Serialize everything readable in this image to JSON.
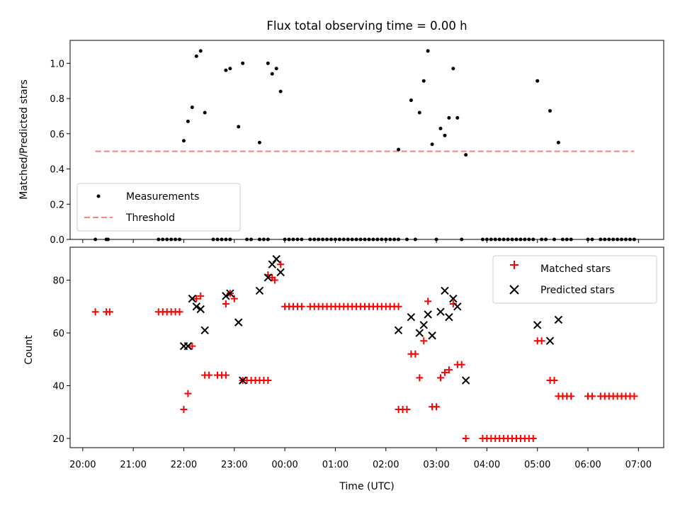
{
  "chart_data": [
    {
      "type": "scatter",
      "title": "Flux total observing time = 0.00 h",
      "xlabel": "",
      "ylabel": "Matched/Predicted stars",
      "xlim": [
        "19:45",
        "07:30"
      ],
      "ylim": [
        0,
        1.13
      ],
      "yticks": [
        "0.0",
        "0.2",
        "0.4",
        "0.6",
        "0.8",
        "1.0"
      ],
      "legend": {
        "placement": "lower-left",
        "entries": [
          "Measurements",
          "Threshold"
        ]
      },
      "threshold": {
        "name": "Threshold",
        "y": 0.5,
        "x_start": "20:15",
        "x_end": "06:55",
        "color": "#ff8080"
      },
      "series": [
        {
          "name": "Measurements",
          "color": "#000000",
          "points": [
            [
              "20:15",
              0
            ],
            [
              "20:28",
              0
            ],
            [
              "20:30",
              0
            ],
            [
              "21:30",
              0
            ],
            [
              "21:35",
              0
            ],
            [
              "21:40",
              0
            ],
            [
              "21:45",
              0
            ],
            [
              "21:50",
              0
            ],
            [
              "21:55",
              0
            ],
            [
              "22:00",
              0.56
            ],
            [
              "22:05",
              0.67
            ],
            [
              "22:10",
              0.75
            ],
            [
              "22:15",
              1.04
            ],
            [
              "22:20",
              1.07
            ],
            [
              "22:25",
              0.72
            ],
            [
              "22:35",
              0
            ],
            [
              "22:40",
              0
            ],
            [
              "22:45",
              0
            ],
            [
              "22:50",
              0
            ],
            [
              "22:55",
              0
            ],
            [
              "22:50",
              0.96
            ],
            [
              "22:55",
              0.97
            ],
            [
              "23:05",
              0.64
            ],
            [
              "23:10",
              1.0
            ],
            [
              "23:15",
              0
            ],
            [
              "23:20",
              0
            ],
            [
              "23:30",
              0
            ],
            [
              "23:35",
              0
            ],
            [
              "23:40",
              0
            ],
            [
              "23:30",
              0.55
            ],
            [
              "23:40",
              1.0
            ],
            [
              "23:45",
              0.94
            ],
            [
              "23:50",
              0.97
            ],
            [
              "23:55",
              0.84
            ],
            [
              "00:00",
              0
            ],
            [
              "00:05",
              0
            ],
            [
              "00:10",
              0
            ],
            [
              "00:15",
              0
            ],
            [
              "00:20",
              0
            ],
            [
              "00:30",
              0
            ],
            [
              "00:35",
              0
            ],
            [
              "00:40",
              0
            ],
            [
              "00:45",
              0
            ],
            [
              "00:50",
              0
            ],
            [
              "00:55",
              0
            ],
            [
              "01:00",
              0
            ],
            [
              "01:05",
              0
            ],
            [
              "01:10",
              0
            ],
            [
              "01:15",
              0
            ],
            [
              "01:20",
              0
            ],
            [
              "01:25",
              0
            ],
            [
              "01:30",
              0
            ],
            [
              "01:35",
              0
            ],
            [
              "01:40",
              0
            ],
            [
              "01:45",
              0
            ],
            [
              "01:50",
              0
            ],
            [
              "01:55",
              0
            ],
            [
              "02:00",
              0
            ],
            [
              "02:05",
              0
            ],
            [
              "02:10",
              0
            ],
            [
              "02:15",
              0
            ],
            [
              "02:15",
              0.51
            ],
            [
              "02:25",
              0
            ],
            [
              "02:30",
              0.79
            ],
            [
              "02:35",
              0
            ],
            [
              "02:40",
              0.72
            ],
            [
              "02:45",
              0.9
            ],
            [
              "02:50",
              1.07
            ],
            [
              "02:55",
              0.54
            ],
            [
              "03:00",
              0
            ],
            [
              "03:05",
              0.63
            ],
            [
              "03:10",
              0.59
            ],
            [
              "03:15",
              0.69
            ],
            [
              "03:20",
              0.97
            ],
            [
              "03:25",
              0.69
            ],
            [
              "03:30",
              0
            ],
            [
              "03:35",
              0.48
            ],
            [
              "03:55",
              0
            ],
            [
              "04:00",
              0
            ],
            [
              "04:05",
              0
            ],
            [
              "04:10",
              0
            ],
            [
              "04:15",
              0
            ],
            [
              "04:20",
              0
            ],
            [
              "04:25",
              0
            ],
            [
              "04:30",
              0
            ],
            [
              "04:35",
              0
            ],
            [
              "04:40",
              0
            ],
            [
              "04:45",
              0
            ],
            [
              "04:50",
              0
            ],
            [
              "04:55",
              0
            ],
            [
              "05:00",
              0.9
            ],
            [
              "05:05",
              0
            ],
            [
              "05:10",
              0
            ],
            [
              "05:15",
              0.73
            ],
            [
              "05:20",
              0
            ],
            [
              "05:25",
              0.55
            ],
            [
              "05:30",
              0
            ],
            [
              "05:35",
              0
            ],
            [
              "05:40",
              0
            ],
            [
              "06:00",
              0
            ],
            [
              "06:05",
              0
            ],
            [
              "06:15",
              0
            ],
            [
              "06:20",
              0
            ],
            [
              "06:25",
              0
            ],
            [
              "06:30",
              0
            ],
            [
              "06:35",
              0
            ],
            [
              "06:40",
              0
            ],
            [
              "06:45",
              0
            ],
            [
              "06:50",
              0
            ],
            [
              "06:55",
              0
            ]
          ]
        }
      ]
    },
    {
      "type": "scatter",
      "title": "",
      "xlabel": "Time (UTC)",
      "ylabel": "Count",
      "xlim": [
        "19:45",
        "07:30"
      ],
      "ylim": [
        16.5,
        92.5
      ],
      "yticks": [
        "20",
        "40",
        "60",
        "80"
      ],
      "xticks": [
        "20:00",
        "21:00",
        "22:00",
        "23:00",
        "00:00",
        "01:00",
        "02:00",
        "03:00",
        "04:00",
        "05:00",
        "06:00",
        "07:00"
      ],
      "legend": {
        "placement": "top-right",
        "entries": [
          "Matched stars",
          "Predicted stars"
        ]
      },
      "series": [
        {
          "name": "Matched stars",
          "marker": "plus",
          "color": "#ff0000",
          "points": [
            [
              "20:15",
              68
            ],
            [
              "20:28",
              68
            ],
            [
              "20:32",
              68
            ],
            [
              "21:30",
              68
            ],
            [
              "21:35",
              68
            ],
            [
              "21:40",
              68
            ],
            [
              "21:45",
              68
            ],
            [
              "21:50",
              68
            ],
            [
              "21:55",
              68
            ],
            [
              "22:00",
              31
            ],
            [
              "22:05",
              37
            ],
            [
              "22:10",
              55
            ],
            [
              "22:15",
              73
            ],
            [
              "22:20",
              74
            ],
            [
              "22:25",
              44
            ],
            [
              "22:30",
              44
            ],
            [
              "22:40",
              44
            ],
            [
              "22:45",
              44
            ],
            [
              "22:50",
              44
            ],
            [
              "22:50",
              71
            ],
            [
              "22:55",
              75
            ],
            [
              "23:00",
              73
            ],
            [
              "23:10",
              42
            ],
            [
              "23:15",
              42
            ],
            [
              "23:20",
              42
            ],
            [
              "23:25",
              42
            ],
            [
              "23:30",
              42
            ],
            [
              "23:35",
              42
            ],
            [
              "23:40",
              42
            ],
            [
              "23:40",
              82
            ],
            [
              "23:45",
              81
            ],
            [
              "23:48",
              80
            ],
            [
              "23:55",
              86
            ],
            [
              "00:00",
              70
            ],
            [
              "00:05",
              70
            ],
            [
              "00:10",
              70
            ],
            [
              "00:15",
              70
            ],
            [
              "00:20",
              70
            ],
            [
              "00:30",
              70
            ],
            [
              "00:35",
              70
            ],
            [
              "00:40",
              70
            ],
            [
              "00:45",
              70
            ],
            [
              "00:50",
              70
            ],
            [
              "00:55",
              70
            ],
            [
              "01:00",
              70
            ],
            [
              "01:05",
              70
            ],
            [
              "01:10",
              70
            ],
            [
              "01:15",
              70
            ],
            [
              "01:20",
              70
            ],
            [
              "01:25",
              70
            ],
            [
              "01:30",
              70
            ],
            [
              "01:35",
              70
            ],
            [
              "01:40",
              70
            ],
            [
              "01:45",
              70
            ],
            [
              "01:50",
              70
            ],
            [
              "01:55",
              70
            ],
            [
              "02:00",
              70
            ],
            [
              "02:05",
              70
            ],
            [
              "02:10",
              70
            ],
            [
              "02:15",
              70
            ],
            [
              "02:15",
              31
            ],
            [
              "02:20",
              31
            ],
            [
              "02:25",
              31
            ],
            [
              "02:30",
              52
            ],
            [
              "02:35",
              52
            ],
            [
              "02:40",
              43
            ],
            [
              "02:45",
              57
            ],
            [
              "02:50",
              72
            ],
            [
              "02:55",
              32
            ],
            [
              "03:00",
              32
            ],
            [
              "03:05",
              43
            ],
            [
              "03:10",
              45
            ],
            [
              "03:15",
              46
            ],
            [
              "03:20",
              71
            ],
            [
              "03:25",
              48
            ],
            [
              "03:30",
              48
            ],
            [
              "03:35",
              20
            ],
            [
              "03:55",
              20
            ],
            [
              "04:00",
              20
            ],
            [
              "04:05",
              20
            ],
            [
              "04:10",
              20
            ],
            [
              "04:15",
              20
            ],
            [
              "04:20",
              20
            ],
            [
              "04:25",
              20
            ],
            [
              "04:30",
              20
            ],
            [
              "04:35",
              20
            ],
            [
              "04:40",
              20
            ],
            [
              "04:45",
              20
            ],
            [
              "04:50",
              20
            ],
            [
              "04:55",
              20
            ],
            [
              "05:00",
              57
            ],
            [
              "05:05",
              57
            ],
            [
              "05:15",
              42
            ],
            [
              "05:20",
              42
            ],
            [
              "05:25",
              36
            ],
            [
              "05:30",
              36
            ],
            [
              "05:35",
              36
            ],
            [
              "05:40",
              36
            ],
            [
              "06:00",
              36
            ],
            [
              "06:05",
              36
            ],
            [
              "06:15",
              36
            ],
            [
              "06:20",
              36
            ],
            [
              "06:25",
              36
            ],
            [
              "06:30",
              36
            ],
            [
              "06:35",
              36
            ],
            [
              "06:40",
              36
            ],
            [
              "06:45",
              36
            ],
            [
              "06:50",
              36
            ],
            [
              "06:55",
              36
            ]
          ]
        },
        {
          "name": "Predicted stars",
          "marker": "x",
          "color": "#000000",
          "points": [
            [
              "22:00",
              55
            ],
            [
              "22:05",
              55
            ],
            [
              "22:10",
              73
            ],
            [
              "22:15",
              70
            ],
            [
              "22:20",
              69
            ],
            [
              "22:25",
              61
            ],
            [
              "22:50",
              74
            ],
            [
              "22:55",
              75
            ],
            [
              "23:05",
              64
            ],
            [
              "23:10",
              42
            ],
            [
              "23:30",
              76
            ],
            [
              "23:40",
              81
            ],
            [
              "23:45",
              86
            ],
            [
              "23:50",
              88
            ],
            [
              "23:55",
              83
            ],
            [
              "02:15",
              61
            ],
            [
              "02:30",
              66
            ],
            [
              "02:40",
              60
            ],
            [
              "02:45",
              63
            ],
            [
              "02:50",
              67
            ],
            [
              "02:55",
              59
            ],
            [
              "03:05",
              68
            ],
            [
              "03:10",
              76
            ],
            [
              "03:15",
              66
            ],
            [
              "03:20",
              73
            ],
            [
              "03:25",
              70
            ],
            [
              "03:35",
              42
            ],
            [
              "05:00",
              63
            ],
            [
              "05:15",
              57
            ],
            [
              "05:25",
              65
            ]
          ]
        }
      ]
    }
  ]
}
